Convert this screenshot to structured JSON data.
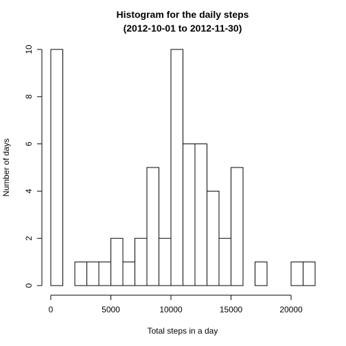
{
  "chart_data": {
    "type": "bar",
    "title_line1": "Histogram for the daily steps",
    "title_line2": "(2012-10-01 to 2012-11-30)",
    "xlabel": "Total steps in a day",
    "ylabel": "Number of days",
    "xlim": [
      0,
      22000
    ],
    "ylim": [
      0,
      10
    ],
    "x_ticks": [
      0,
      5000,
      10000,
      15000,
      20000
    ],
    "y_ticks": [
      0,
      2,
      4,
      6,
      8,
      10
    ],
    "bin_width": 1000,
    "bins": [
      {
        "start": 0,
        "end": 1000,
        "count": 10
      },
      {
        "start": 1000,
        "end": 2000,
        "count": 0
      },
      {
        "start": 2000,
        "end": 3000,
        "count": 1
      },
      {
        "start": 3000,
        "end": 4000,
        "count": 1
      },
      {
        "start": 4000,
        "end": 5000,
        "count": 1
      },
      {
        "start": 5000,
        "end": 6000,
        "count": 2
      },
      {
        "start": 6000,
        "end": 7000,
        "count": 1
      },
      {
        "start": 7000,
        "end": 8000,
        "count": 2
      },
      {
        "start": 8000,
        "end": 9000,
        "count": 5
      },
      {
        "start": 9000,
        "end": 10000,
        "count": 2
      },
      {
        "start": 10000,
        "end": 11000,
        "count": 10
      },
      {
        "start": 11000,
        "end": 12000,
        "count": 6
      },
      {
        "start": 12000,
        "end": 13000,
        "count": 6
      },
      {
        "start": 13000,
        "end": 14000,
        "count": 4
      },
      {
        "start": 14000,
        "end": 15000,
        "count": 2
      },
      {
        "start": 15000,
        "end": 16000,
        "count": 5
      },
      {
        "start": 16000,
        "end": 17000,
        "count": 0
      },
      {
        "start": 17000,
        "end": 18000,
        "count": 1
      },
      {
        "start": 18000,
        "end": 19000,
        "count": 0
      },
      {
        "start": 19000,
        "end": 20000,
        "count": 0
      },
      {
        "start": 20000,
        "end": 21000,
        "count": 1
      },
      {
        "start": 21000,
        "end": 22000,
        "count": 1
      }
    ],
    "bar_fill": "#ffffff",
    "bar_stroke": "#000000",
    "grid": false
  }
}
